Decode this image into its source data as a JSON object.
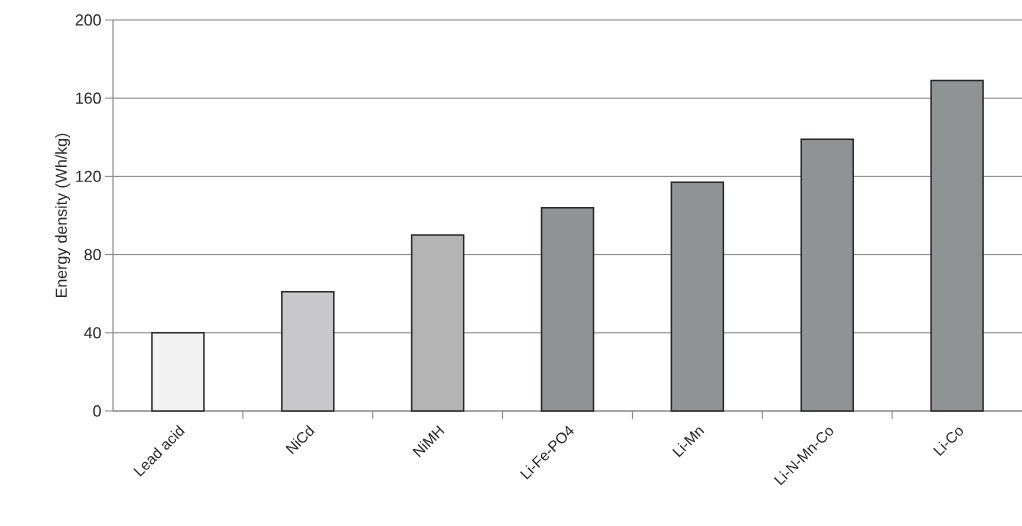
{
  "chart_data": {
    "type": "bar",
    "ylabel": "Energy density (Wh/kg)",
    "categories": [
      "Lead acid",
      "NiCd",
      "NiMH",
      "Li-Fe-PO4",
      "Li-Mn",
      "Li-N-Mn-Co",
      "Li-Co"
    ],
    "values": [
      40,
      61,
      90,
      104,
      117,
      139,
      169
    ],
    "colors": [
      "#f2f2f2",
      "#c8c8ca",
      "#b4b4b4",
      "#8f9394",
      "#8f9394",
      "#8f9394",
      "#8f9394"
    ],
    "ylim": [
      0,
      200
    ],
    "yticks": [
      0,
      40,
      80,
      120,
      160,
      200
    ],
    "grid": "y"
  }
}
